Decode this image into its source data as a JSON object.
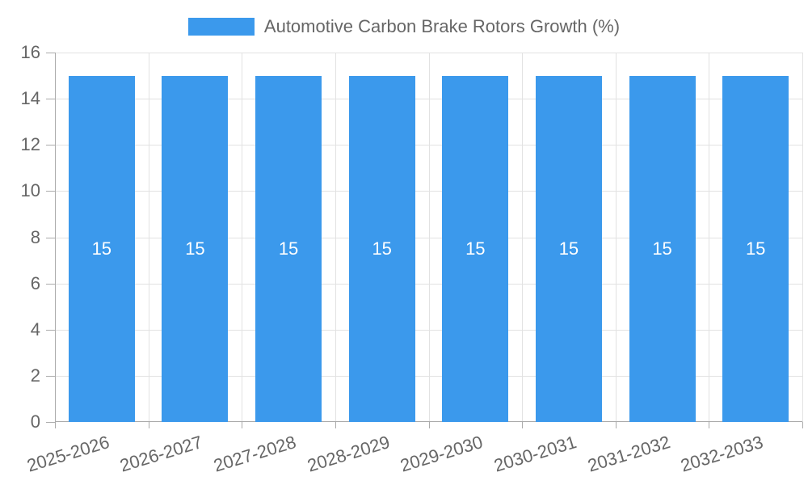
{
  "chart_data": {
    "type": "bar",
    "title": "Automotive Carbon Brake Rotors Growth (%)",
    "legend_position": "top",
    "categories": [
      "2025-2026",
      "2026-2027",
      "2027-2028",
      "2028-2029",
      "2029-2030",
      "2030-2031",
      "2031-2032",
      "2032-2033"
    ],
    "values": [
      15,
      15,
      15,
      15,
      15,
      15,
      15,
      15
    ],
    "bar_value_labels": [
      "15",
      "15",
      "15",
      "15",
      "15",
      "15",
      "15",
      "15"
    ],
    "xlabel": "",
    "ylabel": "",
    "ylim": [
      0,
      16
    ],
    "yticks": [
      0,
      2,
      4,
      6,
      8,
      10,
      12,
      14,
      16
    ],
    "grid": "on",
    "x_label_rotation_deg": -17,
    "colors": {
      "bar": "#3B99EC",
      "grid": "#E2E2E2",
      "axis": "#ABABAB",
      "tick_text": "#666666",
      "legend_text": "#666666",
      "bar_label_text": "#FFFFFF",
      "background": "#FFFFFF"
    }
  }
}
